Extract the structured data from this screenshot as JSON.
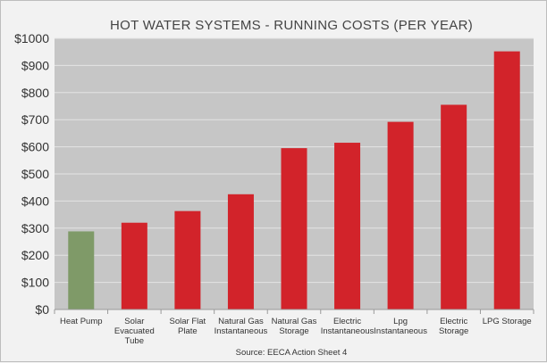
{
  "chart_data": {
    "type": "bar",
    "title": "HOT WATER SYSTEMS - RUNNING COSTS (PER YEAR)",
    "source": "Source: EECA Action Sheet 4",
    "xlabel": "",
    "ylabel": "",
    "ylim": [
      0,
      1000
    ],
    "yticks": [
      0,
      100,
      200,
      300,
      400,
      500,
      600,
      700,
      800,
      900,
      1000
    ],
    "ytick_labels": [
      "$0",
      "$100",
      "$200",
      "$300",
      "$400",
      "$500",
      "$600",
      "$700",
      "$800",
      "$900",
      "$1000"
    ],
    "grid": true,
    "categories": [
      [
        "Heat Pump"
      ],
      [
        "Solar",
        "Evacuated",
        "Tube"
      ],
      [
        "Solar Flat",
        "Plate"
      ],
      [
        "Natural Gas",
        "Instantaneous"
      ],
      [
        "Natural Gas",
        "Storage"
      ],
      [
        "Electric",
        "Instantaneous"
      ],
      [
        "Lpg",
        "Instantaneous"
      ],
      [
        "Electric",
        "Storage"
      ],
      [
        "LPG Storage"
      ]
    ],
    "values": [
      288,
      320,
      363,
      425,
      595,
      615,
      692,
      755,
      952
    ],
    "bar_colors": [
      "#7f9a68",
      "#d2232a",
      "#d2232a",
      "#d2232a",
      "#d2232a",
      "#d2232a",
      "#d2232a",
      "#d2232a",
      "#d2232a"
    ],
    "plot_background": "#c6c6c6",
    "grid_color": "#e4e4e4"
  }
}
